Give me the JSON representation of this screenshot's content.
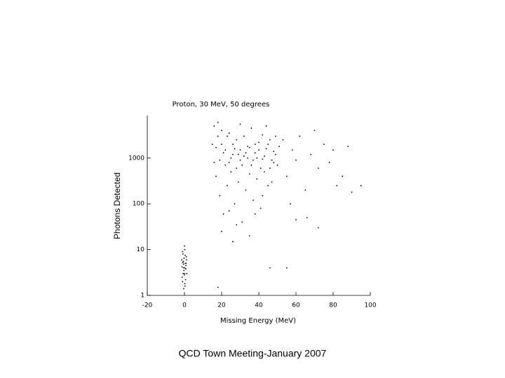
{
  "chart_data": {
    "type": "scatter",
    "title": "Proton, 30 MeV, 50 degrees",
    "x_label": "Missing Energy (MeV)",
    "y_label": "Photons Detected",
    "log_y": true,
    "color": "#000000",
    "xlim": [
      -20,
      100
    ],
    "ylim": [
      1,
      8500
    ],
    "xticks": [
      -20,
      0,
      20,
      40,
      60,
      80,
      100
    ],
    "yticks": [
      1,
      10,
      100,
      1000
    ],
    "x": [
      -1,
      0,
      -0.5,
      0.5,
      -1.5,
      1,
      -0.8,
      0.2,
      -0.3,
      0.8,
      -1.2,
      0.3,
      -0.6,
      1.2,
      -0.2,
      0.6,
      -1,
      0.1,
      -0.4,
      0.9,
      -0.7,
      0.4,
      -1.3,
      0,
      0.7,
      -0.1,
      -0.9,
      1.1,
      0.2,
      -0.5,
      16,
      18,
      20,
      22,
      24,
      26,
      28,
      30,
      32,
      34,
      36,
      38,
      40,
      42,
      44,
      46,
      48,
      17,
      19,
      21,
      23,
      25,
      27,
      29,
      31,
      33,
      35,
      37,
      39,
      41,
      43,
      45,
      47,
      49,
      15,
      16,
      18,
      20,
      22,
      24,
      26,
      28,
      30,
      32,
      34,
      36,
      38,
      40,
      42,
      44,
      46,
      48,
      30,
      33,
      35,
      37,
      31,
      29,
      27,
      25,
      23,
      21,
      19,
      39,
      41,
      43,
      45,
      47,
      49,
      17,
      20,
      26,
      28,
      35,
      18,
      24,
      38,
      42,
      50,
      51,
      53,
      55,
      58,
      60,
      62,
      65,
      68,
      70,
      72,
      75,
      78,
      80,
      82,
      85,
      88,
      90,
      95,
      66,
      57,
      72,
      55,
      46,
      60
    ],
    "values": [
      2,
      3,
      4,
      5,
      6,
      7,
      8,
      10,
      3.5,
      4.5,
      2.5,
      1.6,
      5.5,
      3,
      6.5,
      2.2,
      9,
      4,
      1.4,
      5,
      3,
      7.5,
      4.2,
      12,
      3.8,
      2.8,
      5.2,
      6,
      1.8,
      4.8,
      5000,
      3000,
      2000,
      1500,
      800,
      1200,
      2500,
      900,
      1100,
      1800,
      700,
      1300,
      2200,
      950,
      1600,
      600,
      1400,
      400,
      150,
      60,
      250,
      500,
      100,
      300,
      40,
      200,
      450,
      120,
      350,
      80,
      500,
      250,
      900,
      1200,
      2000,
      800,
      6000,
      4000,
      700,
      3500,
      2000,
      600,
      5500,
      3000,
      1000,
      4500,
      2000,
      1500,
      3200,
      5000,
      2500,
      800,
      1500,
      1300,
      1700,
      900,
      700,
      1200,
      1600,
      1000,
      3000,
      1300,
      900,
      1000,
      600,
      1100,
      2000,
      300,
      3000,
      1700,
      25,
      15,
      35,
      20,
      1.5,
      70,
      60,
      150,
      700,
      1800,
      2500,
      400,
      1500,
      900,
      3000,
      200,
      1200,
      4000,
      600,
      2000,
      800,
      1500,
      250,
      400,
      1800,
      180,
      250,
      50,
      100,
      30,
      4,
      4,
      45
    ]
  },
  "footer": "QCD Town Meeting-January 2007"
}
